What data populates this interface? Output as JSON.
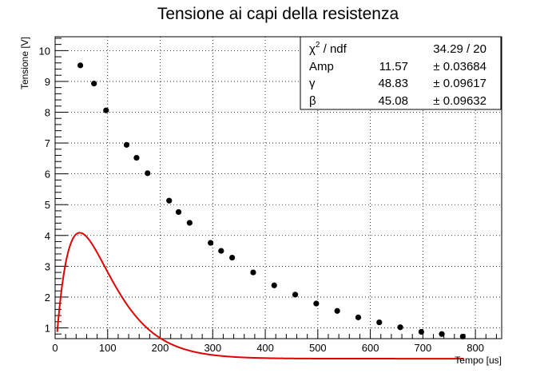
{
  "chart_data": {
    "type": "scatter",
    "title": "Tensione ai capi della resistenza",
    "xlabel": "Tempo [us]",
    "ylabel": "Tensione [V]",
    "xlim": [
      0,
      850
    ],
    "ylim": [
      0.65,
      10.45
    ],
    "x_ticks": [
      0,
      100,
      200,
      300,
      400,
      500,
      600,
      700,
      800
    ],
    "y_ticks": [
      1,
      2,
      3,
      4,
      5,
      6,
      7,
      8,
      9,
      10
    ],
    "grid": true,
    "legend": "none",
    "colors": {
      "points": "#000000",
      "fit": "#e00000"
    },
    "series": [
      {
        "kind": "points",
        "x": [
          48,
          74,
          97,
          136,
          155,
          176,
          217,
          235,
          256,
          296,
          316,
          337,
          377,
          417,
          457,
          497,
          537,
          577,
          617,
          657,
          697,
          736,
          776
        ],
        "y": [
          9.52,
          8.93,
          8.06,
          6.94,
          6.52,
          6.02,
          5.13,
          4.76,
          4.41,
          3.76,
          3.5,
          3.28,
          2.8,
          2.38,
          2.08,
          1.79,
          1.55,
          1.34,
          1.18,
          1.02,
          0.87,
          0.8,
          0.72
        ]
      },
      {
        "kind": "fit",
        "function": "Amp*(exp(-x/gamma) - exp(-x/beta))/(gamma/beta - 1)",
        "params": {
          "Amp": 11.57,
          "gamma": 48.83,
          "beta": 45.08
        },
        "x_range": [
          4,
          778
        ]
      }
    ],
    "stats_box": {
      "rows": [
        {
          "label_main": "χ",
          "label_sup": "2",
          "label_rest": " / ndf",
          "value": "34.29 / 20"
        },
        {
          "label_main": "Amp",
          "value": "11.57",
          "error": "± 0.03684"
        },
        {
          "label_main": "γ",
          "value": "48.83",
          "error": "± 0.09617"
        },
        {
          "label_main": "β",
          "value": "45.08",
          "error": "± 0.09632"
        }
      ]
    }
  }
}
